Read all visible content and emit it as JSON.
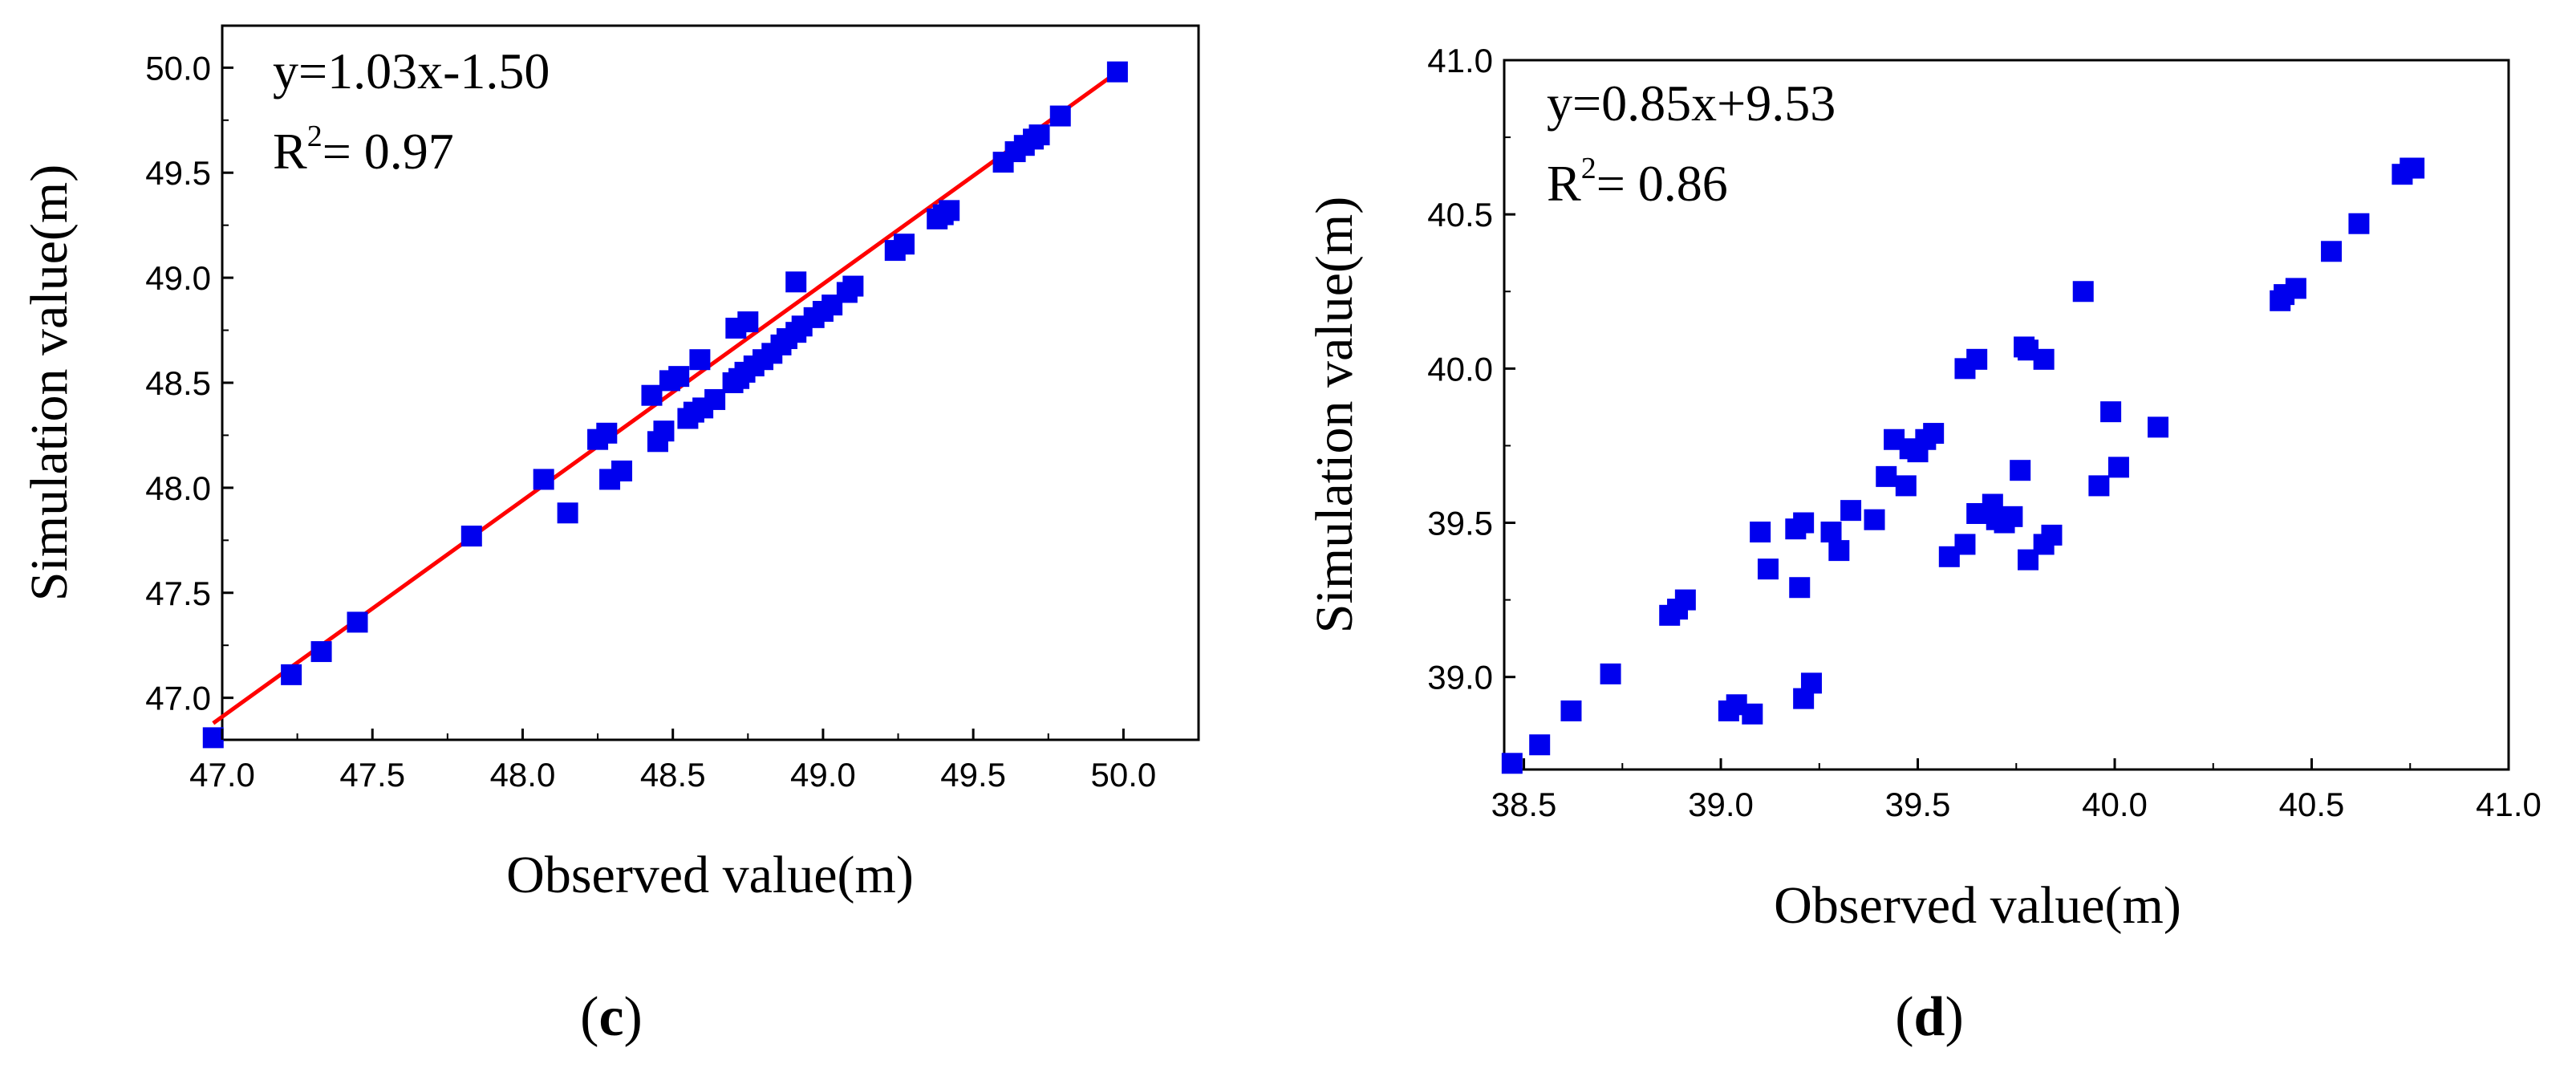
{
  "figure": {
    "panels": [
      "(c)",
      "(d)"
    ]
  },
  "chart_data": [
    {
      "type": "scatter",
      "panel_label": "(c)",
      "xlabel": "Observed value(m)",
      "ylabel": "Simulation value(m)",
      "xlim": [
        47.0,
        50.25
      ],
      "ylim": [
        46.8,
        50.2
      ],
      "xticks": [
        "47.0",
        "47.5",
        "48.0",
        "48.5",
        "49.0",
        "49.5",
        "50.0"
      ],
      "yticks": [
        "47.0",
        "47.5",
        "48.0",
        "48.5",
        "49.0",
        "49.5",
        "50.0"
      ],
      "annotation": {
        "equation": "y=1.03x-1.50",
        "r2_prefix": "R",
        "r2_sup": "2",
        "r2_value": "= 0.97"
      },
      "grid": false,
      "marker_color": "#0000ee",
      "fit_line": {
        "slope": 1.03,
        "intercept": -1.5,
        "x_range": [
          46.97,
          50.0
        ],
        "color": "#ff0000"
      },
      "points": [
        [
          46.97,
          46.81
        ],
        [
          47.23,
          47.11
        ],
        [
          47.33,
          47.22
        ],
        [
          47.45,
          47.36
        ],
        [
          47.83,
          47.77
        ],
        [
          48.07,
          48.04
        ],
        [
          48.15,
          47.88
        ],
        [
          48.25,
          48.23
        ],
        [
          48.28,
          48.26
        ],
        [
          48.29,
          48.04
        ],
        [
          48.33,
          48.08
        ],
        [
          48.43,
          48.44
        ],
        [
          48.45,
          48.22
        ],
        [
          48.47,
          48.27
        ],
        [
          48.49,
          48.51
        ],
        [
          48.52,
          48.53
        ],
        [
          48.55,
          48.33
        ],
        [
          48.57,
          48.36
        ],
        [
          48.59,
          48.61
        ],
        [
          48.6,
          48.38
        ],
        [
          48.64,
          48.42
        ],
        [
          48.7,
          48.5
        ],
        [
          48.72,
          48.52
        ],
        [
          48.74,
          48.55
        ],
        [
          48.71,
          48.76
        ],
        [
          48.75,
          48.79
        ],
        [
          48.77,
          48.58
        ],
        [
          48.8,
          48.61
        ],
        [
          48.83,
          48.64
        ],
        [
          48.86,
          48.68
        ],
        [
          48.88,
          48.71
        ],
        [
          48.91,
          48.74
        ],
        [
          48.91,
          48.98
        ],
        [
          48.93,
          48.77
        ],
        [
          48.97,
          48.81
        ],
        [
          49.0,
          48.84
        ],
        [
          49.03,
          48.87
        ],
        [
          49.08,
          48.93
        ],
        [
          49.1,
          48.96
        ],
        [
          49.24,
          49.13
        ],
        [
          49.27,
          49.16
        ],
        [
          49.38,
          49.28
        ],
        [
          49.4,
          49.3
        ],
        [
          49.42,
          49.32
        ],
        [
          49.6,
          49.55
        ],
        [
          49.64,
          49.6
        ],
        [
          49.67,
          49.63
        ],
        [
          49.7,
          49.66
        ],
        [
          49.72,
          49.68
        ],
        [
          49.79,
          49.77
        ],
        [
          49.98,
          49.98
        ]
      ]
    },
    {
      "type": "scatter",
      "panel_label": "(d)",
      "xlabel": "Observed value(m)",
      "ylabel": "Simulation value(m)",
      "xlim": [
        38.45,
        41.0
      ],
      "ylim": [
        38.7,
        41.0
      ],
      "xticks": [
        "38.5",
        "39.0",
        "39.5",
        "40.0",
        "40.5",
        "41.0"
      ],
      "yticks": [
        "39.0",
        "39.5",
        "40.0",
        "40.5",
        "41.0"
      ],
      "annotation": {
        "equation": "y=0.85x+9.53",
        "r2_prefix": "R",
        "r2_sup": "2",
        "r2_value": "= 0.86"
      },
      "grid": false,
      "marker_color": "#0000ee",
      "fit_line": {
        "slope": 0.85,
        "intercept": 9.53,
        "x_range": [
          38.47,
          40.76
        ],
        "color": "#ff0000"
      },
      "points": [
        [
          38.47,
          38.72
        ],
        [
          38.54,
          38.78
        ],
        [
          38.62,
          38.89
        ],
        [
          38.72,
          39.01
        ],
        [
          38.87,
          39.2
        ],
        [
          38.89,
          39.22
        ],
        [
          38.91,
          39.25
        ],
        [
          39.02,
          38.89
        ],
        [
          39.04,
          38.91
        ],
        [
          39.08,
          38.88
        ],
        [
          39.1,
          39.47
        ],
        [
          39.12,
          39.35
        ],
        [
          39.19,
          39.48
        ],
        [
          39.2,
          39.29
        ],
        [
          39.21,
          39.5
        ],
        [
          39.21,
          38.93
        ],
        [
          39.23,
          38.98
        ],
        [
          39.28,
          39.47
        ],
        [
          39.3,
          39.41
        ],
        [
          39.33,
          39.54
        ],
        [
          39.39,
          39.51
        ],
        [
          39.42,
          39.65
        ],
        [
          39.44,
          39.77
        ],
        [
          39.47,
          39.62
        ],
        [
          39.48,
          39.74
        ],
        [
          39.5,
          39.73
        ],
        [
          39.52,
          39.77
        ],
        [
          39.54,
          39.79
        ],
        [
          39.58,
          39.39
        ],
        [
          39.62,
          39.43
        ],
        [
          39.62,
          40.0
        ],
        [
          39.65,
          40.03
        ],
        [
          39.65,
          39.53
        ],
        [
          39.69,
          39.56
        ],
        [
          39.7,
          39.51
        ],
        [
          39.72,
          39.5
        ],
        [
          39.74,
          39.52
        ],
        [
          39.76,
          39.67
        ],
        [
          39.77,
          40.07
        ],
        [
          39.78,
          40.06
        ],
        [
          39.78,
          39.38
        ],
        [
          39.82,
          39.43
        ],
        [
          39.82,
          40.03
        ],
        [
          39.84,
          39.46
        ],
        [
          39.92,
          40.25
        ],
        [
          39.96,
          39.62
        ],
        [
          39.99,
          39.86
        ],
        [
          40.01,
          39.68
        ],
        [
          40.11,
          39.81
        ],
        [
          40.42,
          40.22
        ],
        [
          40.43,
          40.24
        ],
        [
          40.46,
          40.26
        ],
        [
          40.55,
          40.38
        ],
        [
          40.62,
          40.47
        ],
        [
          40.73,
          40.63
        ],
        [
          40.75,
          40.65
        ],
        [
          40.76,
          40.65
        ]
      ]
    }
  ]
}
